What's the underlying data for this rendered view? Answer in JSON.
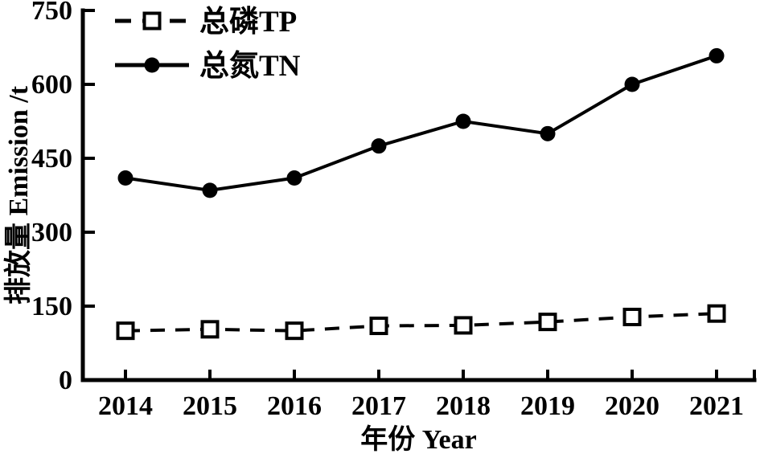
{
  "figure": {
    "background": "#ffffff",
    "ink_color": "#000000"
  },
  "chart_data": {
    "type": "line",
    "title": "",
    "xlabel": "年份 Year",
    "ylabel": "排放量 Emission /t",
    "categories": [
      "2014",
      "2015",
      "2016",
      "2017",
      "2018",
      "2019",
      "2020",
      "2021"
    ],
    "ylim": [
      0,
      750
    ],
    "yticks": [
      0,
      150,
      300,
      450,
      600,
      750
    ],
    "grid": false,
    "legend_position": "top-left-inside",
    "series": [
      {
        "name": "总磷TP",
        "values": [
          100,
          103,
          100,
          110,
          111,
          118,
          128,
          135
        ],
        "line_style": "dashed",
        "marker": "open-square",
        "color": "#000000"
      },
      {
        "name": "总氮TN",
        "values": [
          410,
          385,
          410,
          475,
          525,
          500,
          600,
          658
        ],
        "line_style": "solid",
        "marker": "filled-circle",
        "color": "#000000"
      }
    ]
  }
}
